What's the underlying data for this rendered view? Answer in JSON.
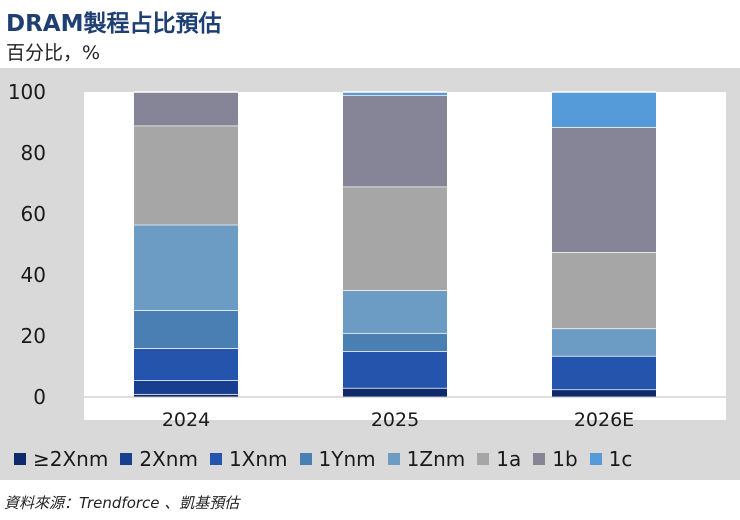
{
  "chart_data": {
    "type": "bar",
    "stacked": true,
    "title": "DRAM製程占比預估",
    "ylabel": "百分比，%",
    "categories": [
      "2024",
      "2025",
      "2026E"
    ],
    "ylim": [
      0,
      100
    ],
    "yticks": [
      0,
      20,
      40,
      60,
      80,
      100
    ],
    "series": [
      {
        "name": "≥2Xnm",
        "color": "#0f2a6b",
        "values": [
          1,
          3,
          2.5
        ]
      },
      {
        "name": "2Xnm",
        "color": "#183f8f",
        "values": [
          4.5,
          0,
          0
        ]
      },
      {
        "name": "1Xnm",
        "color": "#2454ab",
        "values": [
          10.5,
          12,
          11
        ]
      },
      {
        "name": "1Ynm",
        "color": "#4a7fb3",
        "values": [
          12.5,
          6,
          0
        ]
      },
      {
        "name": "1Znm",
        "color": "#6c9bc4",
        "values": [
          28,
          14,
          9
        ]
      },
      {
        "name": "1a",
        "color": "#a6a6a6",
        "values": [
          32.5,
          34,
          25
        ]
      },
      {
        "name": "1b",
        "color": "#868597",
        "values": [
          11,
          30,
          41
        ]
      },
      {
        "name": "1c",
        "color": "#559ad9",
        "values": [
          0,
          1,
          11.5
        ]
      }
    ]
  },
  "source": "資料來源：Trendforce 、凱基預估"
}
